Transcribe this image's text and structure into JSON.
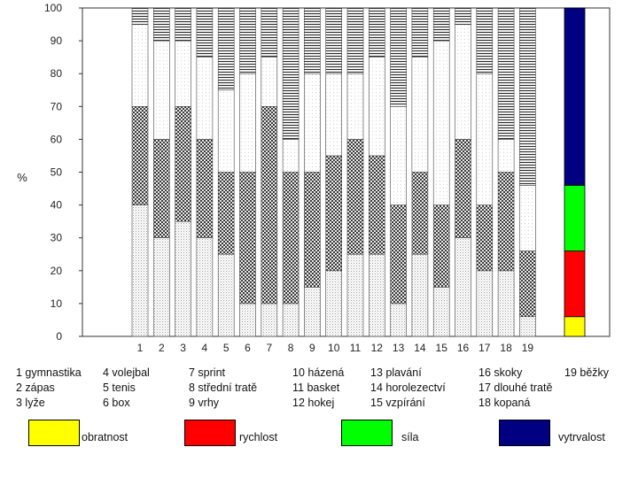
{
  "chart_data": {
    "type": "bar",
    "stacked": true,
    "ylabel": "%",
    "ylim": [
      0,
      100
    ],
    "yticks": [
      0,
      10,
      20,
      30,
      40,
      50,
      60,
      70,
      80,
      90,
      100
    ],
    "categories": [
      "1",
      "2",
      "3",
      "4",
      "5",
      "6",
      "7",
      "8",
      "9",
      "10",
      "11",
      "12",
      "13",
      "14",
      "15",
      "16",
      "17",
      "18",
      "19"
    ],
    "series": [
      {
        "name": "obratnost",
        "values": [
          40,
          30,
          35,
          30,
          25,
          10,
          10,
          10,
          15,
          20,
          25,
          25,
          10,
          25,
          15,
          30,
          20,
          20,
          6
        ]
      },
      {
        "name": "rychlost",
        "values": [
          30,
          30,
          35,
          30,
          25,
          40,
          60,
          40,
          35,
          35,
          35,
          30,
          30,
          25,
          25,
          30,
          20,
          30,
          20
        ]
      },
      {
        "name": "síla",
        "values": [
          25,
          30,
          20,
          25,
          25,
          30,
          15,
          10,
          30,
          25,
          20,
          30,
          30,
          35,
          50,
          35,
          40,
          10,
          20
        ]
      },
      {
        "name": "vytrvalost",
        "values": [
          5,
          10,
          10,
          15,
          25,
          20,
          15,
          40,
          20,
          20,
          20,
          15,
          30,
          15,
          10,
          5,
          20,
          40,
          54
        ]
      }
    ],
    "colors": {
      "obratnost": "#ffff00",
      "rychlost": "#ff0000",
      "síla": "#00ff00",
      "vytrvalost": "#000080"
    },
    "highlight_bar": {
      "values": [
        6,
        20,
        20,
        54
      ]
    }
  },
  "category_legend": [
    [
      "1  gymnastika",
      "4  volejbal",
      "7  sprint",
      "10  házená",
      "13  plavání",
      "16  skoky",
      "19  běžky"
    ],
    [
      "2  zápas",
      "5  tenis",
      "8  střední tratě",
      "11  basket",
      "14  horolezectví",
      "17  dlouhé tratě",
      ""
    ],
    [
      "3  lyže",
      "6  box",
      "9  vrhy",
      "12  hokej",
      "15  vzpírání",
      "18  kopaná",
      ""
    ]
  ],
  "color_key": [
    {
      "label": "obratnost",
      "color": "#ffff00"
    },
    {
      "label": "rychlost",
      "color": "#ff0000"
    },
    {
      "label": "síla",
      "color": "#00ff00"
    },
    {
      "label": "vytrvalost",
      "color": "#000080"
    }
  ]
}
